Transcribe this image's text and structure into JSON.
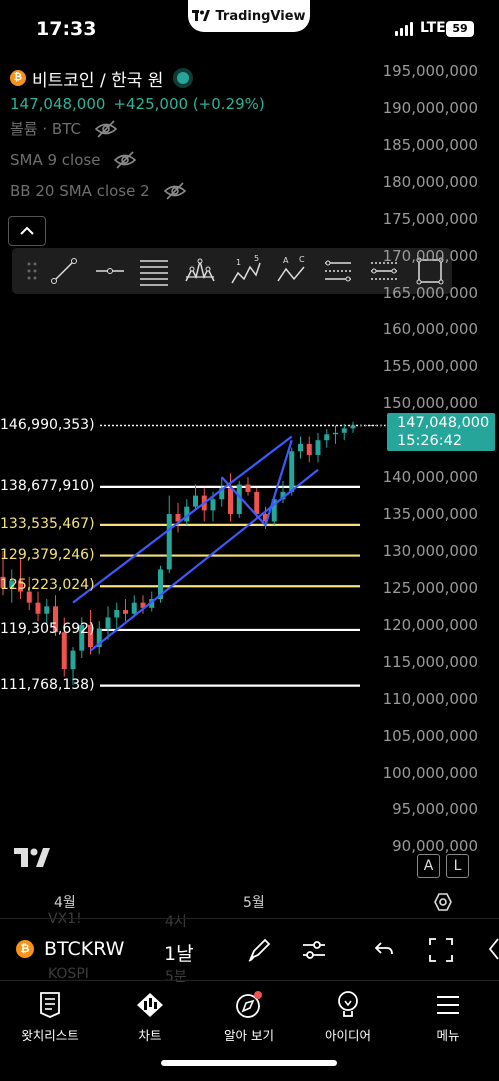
{
  "status_bar": {
    "time": "17:33",
    "app_badge": "TradingView",
    "network": "LTE",
    "battery": "59"
  },
  "legend": {
    "symbol_name": "비트코인 / 한국 원",
    "last_price": "147,048,000",
    "change": "+425,000 (+0.29%)",
    "indicators": [
      {
        "label": "볼륨 · BTC"
      },
      {
        "label": "SMA 9 close"
      },
      {
        "label": "BB 20 SMA close 2"
      }
    ]
  },
  "drawing_toolbar": {
    "tools": [
      "drag-handle-icon",
      "trend-line-icon",
      "horizontal-ray-icon",
      "fib-retracement-icon",
      "head-shoulders-icon",
      "elliott-wave-icon",
      "abcd-pattern-icon",
      "long-position-icon",
      "short-position-icon",
      "rectangle-icon"
    ],
    "elliott_labels": [
      "1",
      "5"
    ],
    "abc_labels": [
      "A",
      "C"
    ]
  },
  "price_axis": {
    "ticks": [
      "195,000,000",
      "190,000,000",
      "185,000,000",
      "180,000,000",
      "175,000,000",
      "170,000,000",
      "165,000,000",
      "160,000,000",
      "155,000,000",
      "150,000,000",
      "140,000,000",
      "135,000,000",
      "130,000,000",
      "125,000,000",
      "120,000,000",
      "115,000,000",
      "110,000,000",
      "105,000,000",
      "100,000,000",
      "95,000,000",
      "90,000,000"
    ],
    "current_price": "147,048,000",
    "countdown": "15:26:42"
  },
  "levels": [
    {
      "label": "146,990,353)",
      "price": 146990353,
      "color": "#ffffff",
      "dotted": true
    },
    {
      "label": "138,677,910)",
      "price": 138677910,
      "color": "#ffffff",
      "dotted": false
    },
    {
      "label": "133,535,467)",
      "price": 133535467,
      "color": "#f5e27a",
      "dotted": false
    },
    {
      "label": "129,379,246)",
      "price": 129379246,
      "color": "#f5e27a",
      "dotted": false
    },
    {
      "label": "125,223,024)",
      "price": 125223024,
      "color": "#f5e27a",
      "dotted": false
    },
    {
      "label": "119,305,692)",
      "price": 119305692,
      "color": "#ffffff",
      "dotted": false
    },
    {
      "label": "111,768,138)",
      "price": 111768138,
      "color": "#ffffff",
      "dotted": false
    }
  ],
  "time_axis": {
    "ticks": [
      "4월",
      "5월"
    ]
  },
  "scale_buttons": {
    "auto": "A",
    "log": "L"
  },
  "ghost_watchlist": {
    "items": [
      "VX1!",
      "4시",
      "KOSPI",
      "5분"
    ]
  },
  "symbol_bar": {
    "ticker": "BTCKRW",
    "interval": "1날"
  },
  "bottom_nav": [
    {
      "label": "왓치리스트",
      "icon": "watchlist-icon"
    },
    {
      "label": "차트",
      "icon": "chart-icon"
    },
    {
      "label": "알아 보기",
      "icon": "explore-icon"
    },
    {
      "label": "아이디어",
      "icon": "ideas-icon"
    },
    {
      "label": "메뉴",
      "icon": "menu-icon"
    }
  ],
  "colors": {
    "up": "#26a69a",
    "down": "#ef5350",
    "channel": "#3d5afe",
    "fib_yellow": "#f5e27a",
    "accent": "#26a69a"
  },
  "chart_data": {
    "type": "candlestick",
    "y_axis": {
      "min": 90000000,
      "max": 195000000,
      "unit": "KRW"
    },
    "x_axis": {
      "ticks": [
        "4월",
        "5월"
      ]
    },
    "candles": [
      {
        "o": 126.5,
        "h": 130.0,
        "l": 124.0,
        "c": 125.0
      },
      {
        "o": 125.0,
        "h": 127.5,
        "l": 123.0,
        "c": 126.0
      },
      {
        "o": 126.0,
        "h": 129.0,
        "l": 123.5,
        "c": 124.5
      },
      {
        "o": 124.5,
        "h": 126.5,
        "l": 122.0,
        "c": 123.0
      },
      {
        "o": 123.0,
        "h": 124.5,
        "l": 120.5,
        "c": 121.5
      },
      {
        "o": 121.5,
        "h": 123.5,
        "l": 120.0,
        "c": 122.5
      },
      {
        "o": 122.5,
        "h": 124.0,
        "l": 118.5,
        "c": 119.0
      },
      {
        "o": 119.0,
        "h": 121.0,
        "l": 113.0,
        "c": 114.0
      },
      {
        "o": 114.0,
        "h": 117.0,
        "l": 111.8,
        "c": 116.5
      },
      {
        "o": 116.5,
        "h": 121.0,
        "l": 115.5,
        "c": 120.0
      },
      {
        "o": 120.0,
        "h": 122.0,
        "l": 116.0,
        "c": 117.0
      },
      {
        "o": 117.0,
        "h": 120.5,
        "l": 116.0,
        "c": 119.5
      },
      {
        "o": 119.5,
        "h": 122.5,
        "l": 118.0,
        "c": 121.0
      },
      {
        "o": 121.0,
        "h": 123.0,
        "l": 119.5,
        "c": 122.0
      },
      {
        "o": 122.0,
        "h": 123.5,
        "l": 120.5,
        "c": 121.5
      },
      {
        "o": 121.5,
        "h": 124.0,
        "l": 121.0,
        "c": 123.0
      },
      {
        "o": 123.0,
        "h": 124.0,
        "l": 121.5,
        "c": 122.3
      },
      {
        "o": 122.3,
        "h": 124.5,
        "l": 121.8,
        "c": 123.5
      },
      {
        "o": 123.5,
        "h": 128.0,
        "l": 123.0,
        "c": 127.5
      },
      {
        "o": 127.5,
        "h": 137.5,
        "l": 127.0,
        "c": 135.0
      },
      {
        "o": 135.0,
        "h": 136.5,
        "l": 132.5,
        "c": 134.0
      },
      {
        "o": 134.0,
        "h": 137.0,
        "l": 133.5,
        "c": 136.0
      },
      {
        "o": 136.0,
        "h": 139.0,
        "l": 135.5,
        "c": 137.5
      },
      {
        "o": 137.5,
        "h": 138.5,
        "l": 134.0,
        "c": 135.5
      },
      {
        "o": 135.5,
        "h": 138.0,
        "l": 134.0,
        "c": 137.0
      },
      {
        "o": 137.0,
        "h": 140.0,
        "l": 136.0,
        "c": 138.5
      },
      {
        "o": 138.5,
        "h": 140.5,
        "l": 134.0,
        "c": 135.0
      },
      {
        "o": 135.0,
        "h": 139.5,
        "l": 134.5,
        "c": 139.0
      },
      {
        "o": 139.0,
        "h": 140.0,
        "l": 137.5,
        "c": 138.0
      },
      {
        "o": 138.0,
        "h": 138.5,
        "l": 134.5,
        "c": 135.0
      },
      {
        "o": 135.0,
        "h": 136.0,
        "l": 133.0,
        "c": 134.0
      },
      {
        "o": 134.0,
        "h": 137.5,
        "l": 133.5,
        "c": 137.0
      },
      {
        "o": 137.0,
        "h": 139.5,
        "l": 136.5,
        "c": 138.0
      },
      {
        "o": 138.0,
        "h": 144.0,
        "l": 137.5,
        "c": 143.5
      },
      {
        "o": 143.5,
        "h": 145.5,
        "l": 142.5,
        "c": 144.5
      },
      {
        "o": 144.5,
        "h": 145.5,
        "l": 142.0,
        "c": 143.0
      },
      {
        "o": 143.0,
        "h": 146.0,
        "l": 142.0,
        "c": 145.0
      },
      {
        "o": 145.0,
        "h": 146.5,
        "l": 144.0,
        "c": 145.8
      },
      {
        "o": 145.8,
        "h": 147.0,
        "l": 144.5,
        "c": 146.0
      },
      {
        "o": 146.0,
        "h": 147.2,
        "l": 145.0,
        "c": 146.6
      },
      {
        "o": 146.6,
        "h": 147.5,
        "l": 146.0,
        "c": 147.0
      }
    ],
    "channel_lines": [
      {
        "from_candle": 8,
        "from_price": 123.0,
        "to_candle": 33,
        "to_price": 145.5
      },
      {
        "from_candle": 10,
        "from_price": 116.5,
        "to_candle": 36,
        "to_price": 141.0
      }
    ],
    "zigzag": [
      {
        "candle": 25,
        "price": 140.0
      },
      {
        "candle": 30,
        "price": 133.5
      },
      {
        "candle": 33,
        "price": 145.0
      }
    ]
  }
}
